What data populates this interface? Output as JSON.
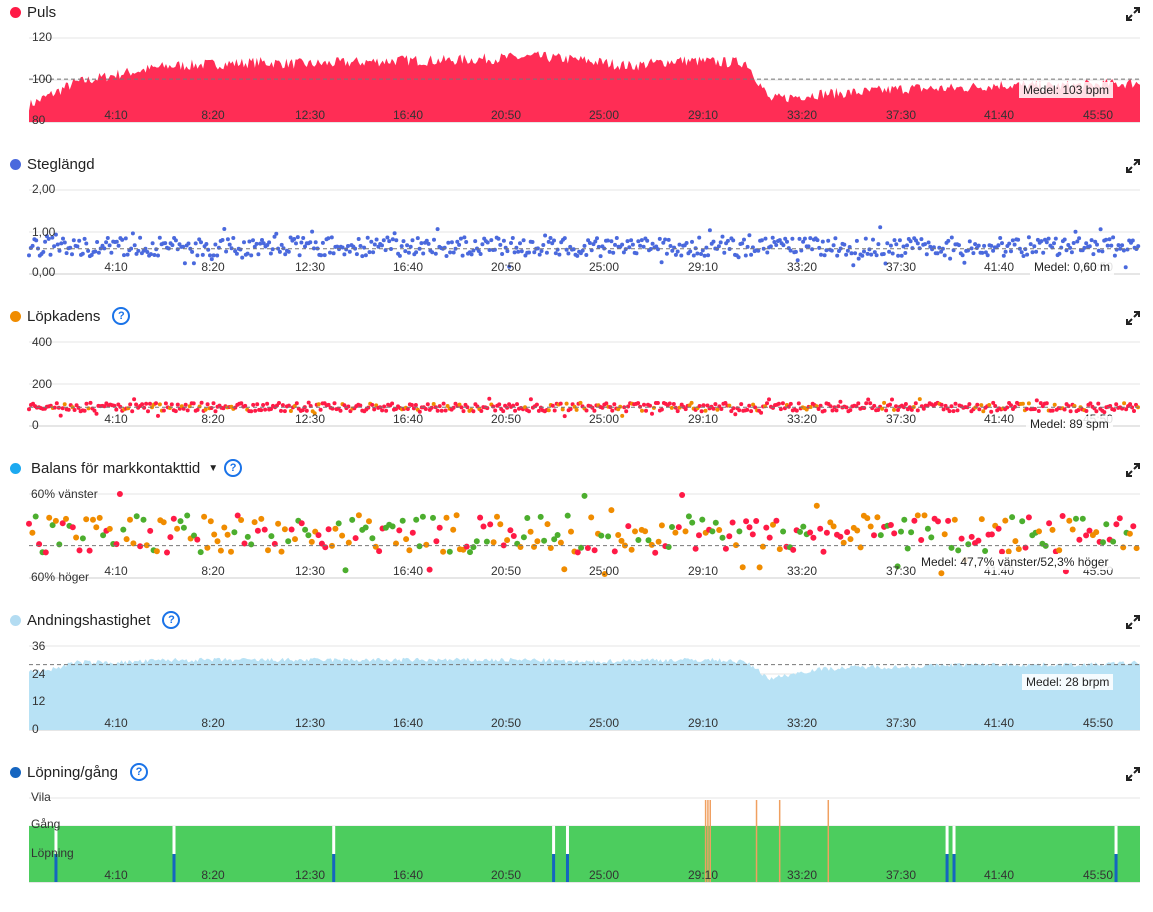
{
  "x_ticks": [
    "4:10",
    "8:20",
    "12:30",
    "16:40",
    "20:50",
    "25:00",
    "29:10",
    "33:20",
    "37:30",
    "41:40",
    "45:50"
  ],
  "colors": {
    "pulse": "#ff2d55",
    "stride": "#4a69dd",
    "cadence_orange": "#f08c00",
    "cadence_red": "#ff1a46",
    "balance_blue": "#1ca9f0",
    "balance_green": "#4cae2e",
    "balance_orange": "#f08c00",
    "balance_red": "#ff1a46",
    "respiration": "#b8e2f5",
    "respiration_dot": "#b3dcf2",
    "walk_dot": "#1565c0",
    "run_green": "#4ccd5e",
    "walk_orange": "#f0a060",
    "run_blue": "#1565c0"
  },
  "chart_data": [
    {
      "type": "area",
      "id": "pulse",
      "title": "Puls",
      "y_ticks": [
        "120",
        "100",
        "80"
      ],
      "ylim": [
        80,
        125
      ],
      "average": 103,
      "average_label": "Medel: 103 bpm",
      "x_minutes": [
        0,
        2,
        4,
        6,
        8,
        10,
        12,
        14,
        16,
        18,
        20,
        22,
        24,
        26,
        28,
        30,
        31,
        32,
        34,
        36,
        38,
        40,
        42,
        44,
        46,
        48
      ],
      "values": [
        89,
        101,
        106,
        110,
        111,
        112,
        111,
        112,
        113,
        113,
        114,
        115,
        113,
        110,
        113,
        112,
        112,
        92,
        95,
        96,
        98,
        98,
        100,
        99,
        100,
        101
      ]
    },
    {
      "type": "scatter",
      "id": "stride",
      "title": "Steglängd",
      "y_ticks": [
        "2,00",
        "1,00",
        "0,00"
      ],
      "ylim": [
        0,
        2
      ],
      "average": 0.6,
      "average_label": "Medel: 0,60 m",
      "center": 0.65,
      "spread": 0.45
    },
    {
      "type": "scatter",
      "id": "cadence",
      "title": "Löpkadens",
      "y_ticks": [
        "400",
        "200",
        "0"
      ],
      "ylim": [
        0,
        400
      ],
      "average": 89,
      "average_label": "Medel: 89 spm",
      "center": 90,
      "spread": 40
    },
    {
      "type": "scatter",
      "id": "balance",
      "title": "Balans för markkontakttid",
      "y_ticks": [
        "60% vänster",
        "60% höger"
      ],
      "ylim": [
        40,
        60
      ],
      "average": 47.7,
      "average_label": "Medel: 47,7% vänster/52,3% höger",
      "center": 50.5,
      "spread": 9
    },
    {
      "type": "area",
      "id": "respiration",
      "title": "Andningshastighet",
      "y_ticks": [
        "36",
        "24",
        "12",
        "0"
      ],
      "ylim": [
        0,
        36
      ],
      "average": 28,
      "average_label": "Medel: 28 brpm",
      "x_minutes": [
        0,
        1,
        2,
        4,
        6,
        8,
        10,
        12,
        14,
        16,
        18,
        20,
        22,
        24,
        26,
        28,
        30,
        31,
        32,
        34,
        36,
        38,
        40,
        42,
        44,
        46,
        48
      ],
      "values": [
        25,
        26,
        29,
        29,
        30,
        30,
        30,
        30,
        30,
        30,
        30,
        30,
        30,
        29,
        30,
        30,
        30,
        29,
        22,
        26,
        27,
        27,
        28,
        28,
        28,
        28,
        29
      ]
    },
    {
      "type": "bar",
      "id": "runwalk",
      "title": "Löpning/gång",
      "y_ticks": [
        "Vila",
        "Gång",
        "Löpning"
      ]
    }
  ]
}
